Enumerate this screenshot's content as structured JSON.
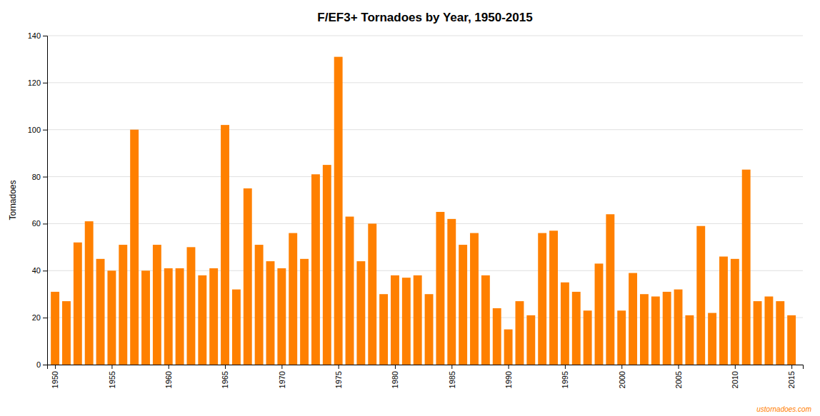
{
  "chart_data": {
    "type": "bar",
    "title": "F/EF3+ Tornadoes by Year, 1950-2015",
    "ylabel": "Tornadoes",
    "annotations": [
      "ustornadoes.com"
    ],
    "color": "#FF8000",
    "x": [
      1950,
      1951,
      1952,
      1953,
      1954,
      1955,
      1956,
      1957,
      1958,
      1959,
      1960,
      1961,
      1962,
      1963,
      1964,
      1965,
      1966,
      1967,
      1968,
      1969,
      1970,
      1971,
      1972,
      1973,
      1974,
      1975,
      1976,
      1977,
      1978,
      1979,
      1980,
      1981,
      1982,
      1983,
      1984,
      1985,
      1986,
      1987,
      1988,
      1989,
      1990,
      1991,
      1992,
      1993,
      1994,
      1995,
      1996,
      1997,
      1998,
      1999,
      2000,
      2001,
      2002,
      2003,
      2004,
      2005,
      2006,
      2007,
      2008,
      2009,
      2010,
      2011,
      2012,
      2013,
      2014,
      2015
    ],
    "values": [
      31,
      27,
      52,
      61,
      45,
      40,
      51,
      100,
      40,
      51,
      41,
      41,
      50,
      38,
      41,
      102,
      32,
      75,
      51,
      44,
      41,
      56,
      45,
      81,
      85,
      131,
      63,
      44,
      60,
      30,
      38,
      37,
      38,
      30,
      65,
      62,
      51,
      56,
      38,
      24,
      15,
      27,
      21,
      56,
      57,
      35,
      31,
      23,
      43,
      64,
      23,
      39,
      30,
      29,
      31,
      32,
      21,
      59,
      22,
      46,
      45,
      83,
      27,
      29,
      27,
      21
    ],
    "xlim": [
      1949.3,
      2016.0
    ],
    "xticks": [
      1950,
      1955,
      1960,
      1965,
      1970,
      1975,
      1980,
      1985,
      1990,
      1995,
      2000,
      2005,
      2010,
      2015
    ],
    "ylim": [
      0,
      140
    ],
    "yticks": [
      0,
      20,
      40,
      60,
      80,
      100,
      120,
      140
    ],
    "grid": true
  }
}
